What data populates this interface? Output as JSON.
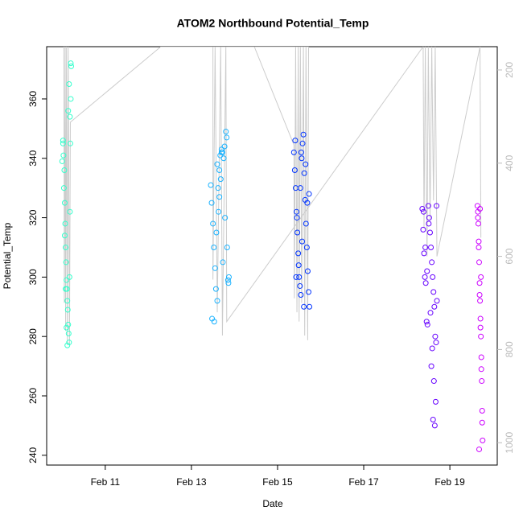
{
  "chart_data": {
    "type": "scatter",
    "title": "ATOM2 Northbound Potential_Temp",
    "x_label": "Date",
    "y_label": "Potential_Temp",
    "xlim": [
      9.64,
      20.1
    ],
    "xticks": [
      {
        "value": 11,
        "label": "Feb 11"
      },
      {
        "value": 13,
        "label": "Feb 13"
      },
      {
        "value": 15,
        "label": "Feb 15"
      },
      {
        "value": 17,
        "label": "Feb 17"
      },
      {
        "value": 19,
        "label": "Feb 19"
      }
    ],
    "ylim": [
      236.7,
      377.6
    ],
    "yticks": [
      240,
      260,
      280,
      300,
      320,
      340,
      360
    ],
    "y2lim": [
      1048,
      150
    ],
    "y2ticks": [
      200,
      400,
      600,
      800,
      1000
    ],
    "series": [
      {
        "type": "line",
        "axis": "y2",
        "color": "#cccccc",
        "x": [
          10.04,
          10.05,
          10.07,
          10.08,
          10.1,
          10.12,
          10.14,
          10.17,
          10.19,
          12.29,
          14.46,
          15.38,
          15.39,
          15.42,
          15.45,
          15.48,
          15.5,
          15.53,
          15.56,
          15.6,
          15.63,
          15.66,
          15.7,
          15.72,
          13.5,
          13.5,
          13.55,
          13.6,
          13.68,
          13.72,
          13.8,
          13.82,
          18.38,
          18.4,
          18.43,
          18.47,
          18.5,
          18.54,
          18.58,
          18.62,
          18.66,
          18.7,
          19.7,
          19.72
        ],
        "values": [
          150,
          700,
          150,
          760,
          150,
          790,
          150,
          790,
          312,
          150,
          150,
          361,
          690,
          150,
          720,
          150,
          740,
          150,
          700,
          150,
          770,
          150,
          780,
          150,
          150,
          650,
          150,
          720,
          150,
          770,
          150,
          740,
          150,
          540,
          150,
          600,
          150,
          520,
          150,
          480,
          150,
          600,
          150,
          560
        ]
      },
      {
        "color": "#33ffcc",
        "x": [
          10.0,
          10.02,
          10.03,
          10.05,
          10.06,
          10.07,
          10.08,
          10.09,
          10.1,
          10.11,
          10.12,
          10.13,
          10.14,
          10.15,
          10.16,
          10.17,
          10.18,
          10.19,
          10.2,
          10.21,
          10.02,
          10.04,
          10.06,
          10.08,
          10.1,
          10.12,
          10.14,
          10.16,
          10.18,
          10.2
        ],
        "values": [
          339,
          345,
          341,
          336,
          325,
          318,
          310,
          305,
          299,
          296,
          292,
          289,
          284,
          281,
          278,
          300,
          322,
          345,
          360,
          371,
          346,
          330,
          314,
          296,
          283,
          277,
          356,
          365,
          354,
          372
        ]
      },
      {
        "color": "#1ab2ff",
        "x": [
          13.45,
          13.47,
          13.5,
          13.52,
          13.55,
          13.57,
          13.6,
          13.62,
          13.65,
          13.67,
          13.7,
          13.72,
          13.75,
          13.77,
          13.8,
          13.82,
          13.85,
          13.87,
          13.48,
          13.53,
          13.58,
          13.63,
          13.68,
          13.73,
          13.78,
          13.83,
          13.86,
          13.6,
          13.65,
          13.7
        ],
        "values": [
          331,
          325,
          318,
          310,
          303,
          296,
          292,
          330,
          336,
          341,
          343,
          342,
          340,
          344,
          349,
          347,
          299,
          300,
          286,
          285,
          315,
          322,
          333,
          305,
          320,
          310,
          298,
          338,
          327,
          342
        ]
      },
      {
        "color": "#0033ff",
        "x": [
          15.38,
          15.4,
          15.42,
          15.44,
          15.46,
          15.48,
          15.5,
          15.52,
          15.54,
          15.56,
          15.58,
          15.6,
          15.62,
          15.64,
          15.66,
          15.68,
          15.7,
          15.72,
          15.74,
          15.41,
          15.45,
          15.49,
          15.53,
          15.57,
          15.61,
          15.65,
          15.69,
          15.73,
          15.43,
          15.55
        ],
        "values": [
          342,
          336,
          330,
          322,
          315,
          308,
          300,
          297,
          294,
          340,
          345,
          348,
          335,
          326,
          318,
          310,
          302,
          295,
          290,
          346,
          320,
          304,
          330,
          312,
          290,
          338,
          325,
          328,
          300,
          342
        ]
      },
      {
        "color": "#6600ff",
        "x": [
          18.36,
          18.38,
          18.4,
          18.42,
          18.44,
          18.46,
          18.48,
          18.5,
          18.52,
          18.54,
          18.56,
          18.58,
          18.6,
          18.62,
          18.64,
          18.66,
          18.68,
          18.7,
          18.39,
          18.43,
          18.47,
          18.51,
          18.55,
          18.59,
          18.63,
          18.67,
          18.57,
          18.61,
          18.65,
          18.69
        ],
        "values": [
          323,
          316,
          308,
          300,
          298,
          285,
          284,
          324,
          320,
          315,
          310,
          305,
          300,
          295,
          290,
          280,
          278,
          292,
          322,
          310,
          302,
          318,
          288,
          276,
          265,
          258,
          270,
          252,
          250,
          324
        ]
      },
      {
        "color": "#cc00ff",
        "x": [
          19.64,
          19.65,
          19.66,
          19.67,
          19.68,
          19.69,
          19.7,
          19.71,
          19.72,
          19.73,
          19.74,
          19.75,
          19.76,
          19.65,
          19.67,
          19.69,
          19.71,
          19.73,
          19.75,
          19.68,
          19.7,
          19.72
        ],
        "values": [
          324,
          322,
          318,
          312,
          305,
          298,
          292,
          286,
          280,
          273,
          265,
          255,
          245,
          320,
          310,
          294,
          283,
          269,
          251,
          242,
          323,
          300
        ]
      }
    ]
  }
}
